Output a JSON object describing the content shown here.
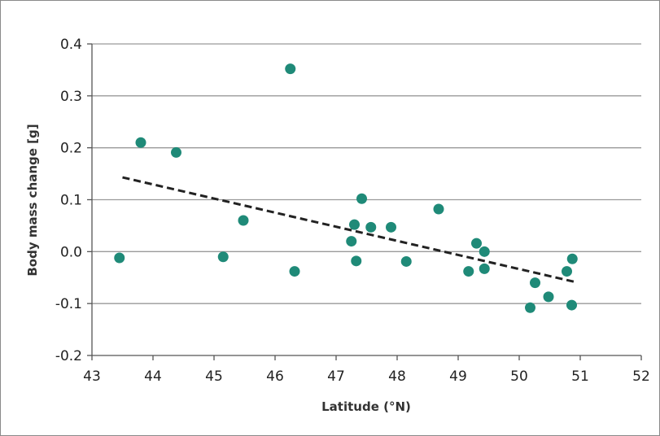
{
  "chart_data": {
    "type": "scatter",
    "xlabel": "Latitude (°N)",
    "ylabel": "Body mass change [g]",
    "xlim": [
      43,
      52
    ],
    "ylim": [
      -0.2,
      0.4
    ],
    "x_ticks": [
      43,
      44,
      45,
      46,
      47,
      48,
      49,
      50,
      51,
      52
    ],
    "y_ticks": [
      0.4,
      0.3,
      0.2,
      0.1,
      0.0,
      -0.1,
      -0.2
    ],
    "x_tick_labels": [
      "43",
      "44",
      "45",
      "46",
      "47",
      "48",
      "49",
      "50",
      "51",
      "52"
    ],
    "y_tick_labels": [
      "0.4",
      "0.3",
      "0.2",
      "0.1",
      "0.0",
      "-0.1",
      "-0.2"
    ],
    "grid": "horizontal",
    "point_color": "#1f8a78",
    "trend_color": "#222222",
    "series": [
      {
        "x": [
          43.45,
          43.8,
          44.38,
          45.15,
          45.48,
          46.25,
          46.32,
          47.25,
          47.3,
          47.33,
          47.42,
          47.57,
          47.9,
          48.15,
          48.68,
          49.17,
          49.3,
          49.43,
          49.43,
          50.18,
          50.26,
          50.48,
          50.78,
          50.86,
          50.87
        ],
        "y": [
          -0.012,
          0.21,
          0.191,
          -0.01,
          0.06,
          0.352,
          -0.038,
          0.02,
          0.052,
          -0.018,
          0.102,
          0.047,
          0.047,
          -0.019,
          0.082,
          -0.038,
          0.016,
          0.0,
          -0.033,
          -0.108,
          -0.06,
          -0.087,
          -0.038,
          -0.103,
          -0.014
        ]
      }
    ],
    "trendline": {
      "x": [
        43.5,
        50.9
      ],
      "y": [
        0.143,
        -0.058
      ]
    }
  }
}
